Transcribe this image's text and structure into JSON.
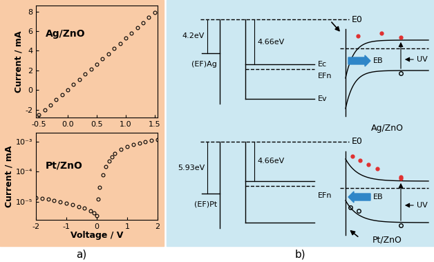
{
  "chart_data": [
    {
      "type": "scatter",
      "annotation": "Ag/ZnO",
      "y_label": "Current / mA",
      "marker": "circle",
      "x": [
        -0.5,
        -0.4,
        -0.3,
        -0.2,
        -0.1,
        0.0,
        0.1,
        0.2,
        0.3,
        0.4,
        0.5,
        0.6,
        0.7,
        0.8,
        0.9,
        1.0,
        1.1,
        1.2,
        1.3,
        1.4,
        1.5
      ],
      "values": [
        -2.5,
        -2.0,
        -1.5,
        -1.0,
        -0.45,
        0.05,
        0.55,
        1.1,
        1.6,
        2.15,
        2.65,
        3.2,
        3.7,
        4.25,
        4.75,
        5.3,
        5.8,
        6.35,
        6.85,
        7.4,
        7.9
      ],
      "xlim": [
        -0.55,
        1.55
      ],
      "xticks": [
        -0.5,
        0.0,
        0.5,
        1.0,
        1.5
      ],
      "ylim": [
        -2.8,
        8.6
      ],
      "yticks": [
        -2,
        0,
        2,
        4,
        6,
        8
      ]
    },
    {
      "type": "scatter",
      "annotation": "Pt/ZnO",
      "y_label": "Current / mA",
      "x_label": "Voltage / V",
      "marker": "circle",
      "log": "y",
      "x": [
        -2.0,
        -1.8,
        -1.6,
        -1.4,
        -1.2,
        -1.0,
        -0.8,
        -0.6,
        -0.4,
        -0.2,
        -0.1,
        0.0,
        0.05,
        0.1,
        0.2,
        0.3,
        0.4,
        0.5,
        0.6,
        0.8,
        1.0,
        1.2,
        1.4,
        1.6,
        1.8,
        2.0
      ],
      "values": [
        1.4e-05,
        1.3e-05,
        1.2e-05,
        1.1e-05,
        1e-05,
        9e-06,
        8e-06,
        7e-06,
        6e-06,
        5e-06,
        4.2e-06,
        3.5e-06,
        1.2e-05,
        3e-05,
        8e-05,
        0.00015,
        0.00023,
        0.00032,
        0.0004,
        0.00055,
        0.00068,
        0.0008,
        0.0009,
        0.001,
        0.0011,
        0.0012
      ],
      "xlim": [
        -2,
        2
      ],
      "xticks": [
        -2,
        -1,
        0,
        1,
        2
      ],
      "ylim": [
        2.5e-06,
        0.002
      ],
      "yticks": [
        {
          "value": 1e-05,
          "label": "10⁻⁵"
        },
        {
          "value": 0.0001,
          "label": "10⁻⁴"
        },
        {
          "value": 0.001,
          "label": "10⁻³"
        }
      ]
    }
  ],
  "diagram": {
    "panel_labels": [
      "a)",
      "b)"
    ],
    "band_diagrams": [
      {
        "name": "Ag/ZnO",
        "metal_fermi_level": "(EF)Ag",
        "metal_work_function": "4.2eV",
        "zno_electron_affinity": "4.66eV",
        "vacuum_level": "E0",
        "levels": [
          "Ec",
          "EFn",
          "Ev"
        ],
        "barrier": "EB",
        "light": "UV"
      },
      {
        "name": "Pt/ZnO",
        "metal_fermi_level": "(EF)Pt",
        "metal_work_function": "5.93eV",
        "zno_electron_affinity": "4.66eV",
        "vacuum_level": "E0",
        "levels": [
          "EFn"
        ],
        "barrier": "EB",
        "light": "UV"
      }
    ]
  }
}
